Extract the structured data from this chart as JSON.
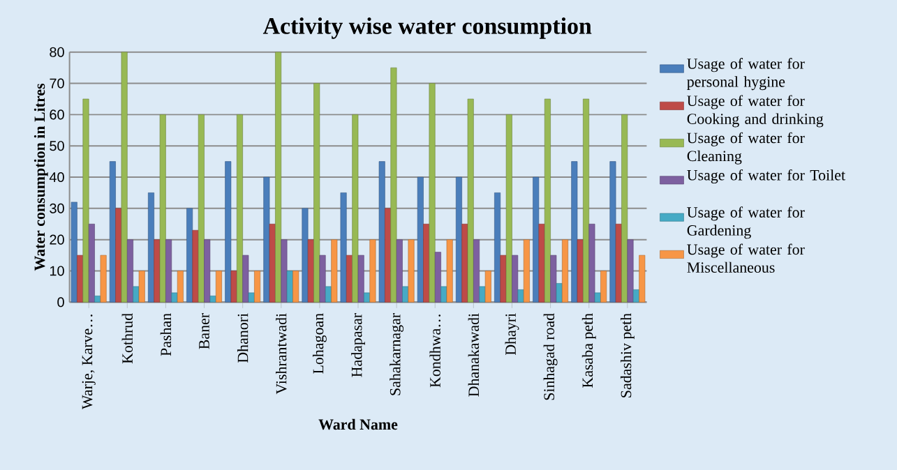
{
  "chart_data": {
    "type": "bar",
    "title": "Activity wise water consumption",
    "xlabel": "Ward Name",
    "ylabel": "Water consumption in Litres",
    "categories": [
      "Warje, Karve…",
      "Kothrud",
      "Pashan",
      "Baner",
      "Dhanori",
      "Vishrantwadi",
      "Lohagoan",
      "Hadapasar",
      "Sahakarnagar",
      "Kondhwa…",
      "Dhanakawadi",
      "Dhayri",
      "Sinhagad road",
      "Kasaba  peth",
      "Sadashiv peth"
    ],
    "series": [
      {
        "name": "Usage of water for personal hygine",
        "color": "#4a7ebb",
        "values": [
          32,
          45,
          35,
          30,
          45,
          40,
          30,
          35,
          45,
          40,
          40,
          35,
          40,
          45,
          45
        ]
      },
      {
        "name": "Usage of water for Cooking and drinking",
        "color": "#be4b48",
        "values": [
          15,
          30,
          20,
          23,
          10,
          25,
          20,
          15,
          30,
          25,
          25,
          15,
          25,
          20,
          25
        ]
      },
      {
        "name": "Usage of water for Cleaning",
        "color": "#98b954",
        "values": [
          65,
          80,
          60,
          60,
          60,
          80,
          70,
          60,
          75,
          70,
          65,
          60,
          65,
          65,
          60
        ]
      },
      {
        "name": "Usage of water for Toilet",
        "color": "#7d60a0",
        "values": [
          25,
          20,
          20,
          20,
          15,
          20,
          15,
          15,
          20,
          16,
          20,
          15,
          15,
          25,
          20
        ]
      },
      {
        "name": "Usage of water for Gardening",
        "color": "#46aac5",
        "values": [
          2,
          5,
          3,
          2,
          3,
          10,
          5,
          3,
          5,
          5,
          5,
          4,
          6,
          3,
          4
        ]
      },
      {
        "name": "Usage of water for Miscellaneous",
        "color": "#f79646",
        "values": [
          15,
          10,
          10,
          10,
          10,
          10,
          20,
          20,
          20,
          20,
          10,
          20,
          20,
          10,
          15
        ]
      }
    ],
    "ylim": [
      0,
      80
    ],
    "yticks": [
      0,
      10,
      20,
      30,
      40,
      50,
      60,
      70,
      80
    ],
    "grid": "y",
    "legend": "right"
  }
}
